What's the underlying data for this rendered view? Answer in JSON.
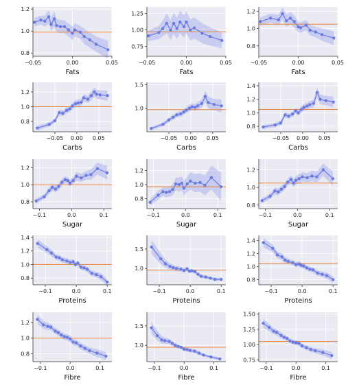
{
  "colors": {
    "background": "#eaeaf2",
    "line": "#6b7be0",
    "band": "#a9b2ee",
    "reference": "#e8823a",
    "grid": "#ffffff"
  },
  "chart_data": [
    {
      "type": "line",
      "row": 0,
      "col": 0,
      "xlabel": "Fats",
      "xlim": [
        -0.05,
        0.05
      ],
      "ylim": [
        0.77,
        1.22
      ],
      "xticks": [
        -0.05,
        0.0,
        0.05
      ],
      "xtick_labels": [
        "−0.05",
        "0.00",
        "0.05"
      ],
      "yticks": [
        0.8,
        1.0,
        1.2
      ],
      "ytick_labels": [
        "0.8",
        "1.0",
        "1.2"
      ],
      "reference": 0.99,
      "x": [
        -0.048,
        -0.04,
        -0.035,
        -0.03,
        -0.027,
        -0.023,
        -0.02,
        -0.015,
        -0.01,
        -0.005,
        0.0,
        0.003,
        0.01,
        0.015,
        0.022,
        0.03,
        0.045
      ],
      "y": [
        1.08,
        1.1,
        1.09,
        1.13,
        1.06,
        1.11,
        1.05,
        1.04,
        1.04,
        1.01,
        0.98,
        1.01,
        0.99,
        0.95,
        0.92,
        0.88,
        0.83
      ],
      "band": [
        0.04,
        0.04,
        0.05,
        0.06,
        0.06,
        0.07,
        0.06,
        0.06,
        0.06,
        0.06,
        0.06,
        0.06,
        0.06,
        0.07,
        0.07,
        0.07,
        0.08
      ]
    },
    {
      "type": "line",
      "row": 0,
      "col": 1,
      "xlabel": "Fats",
      "xlim": [
        -0.05,
        0.05
      ],
      "ylim": [
        0.6,
        1.35
      ],
      "xticks": [
        -0.05,
        0.0,
        0.05
      ],
      "xtick_labels": [
        "−0.05",
        "0.00",
        "0.05"
      ],
      "yticks": [
        0.75,
        1.0,
        1.25
      ],
      "ytick_labels": [
        "0.75",
        "1.00",
        "1.25"
      ],
      "reference": 0.97,
      "x": [
        -0.048,
        -0.035,
        -0.03,
        -0.025,
        -0.02,
        -0.016,
        -0.012,
        -0.008,
        -0.003,
        0.0,
        0.005,
        0.01,
        0.02,
        0.03,
        0.045
      ],
      "y": [
        0.91,
        0.96,
        1.02,
        1.1,
        1.0,
        1.1,
        1.02,
        1.12,
        1.05,
        1.12,
        1.0,
        1.03,
        0.95,
        0.9,
        0.84
      ],
      "band": [
        0.08,
        0.1,
        0.12,
        0.15,
        0.15,
        0.16,
        0.16,
        0.17,
        0.17,
        0.17,
        0.16,
        0.16,
        0.15,
        0.14,
        0.12
      ]
    },
    {
      "type": "line",
      "row": 0,
      "col": 2,
      "xlabel": "Fats",
      "xlim": [
        -0.05,
        0.05
      ],
      "ylim": [
        0.68,
        1.25
      ],
      "xticks": [
        -0.05,
        0.0,
        0.05
      ],
      "xtick_labels": [
        "−0.05",
        "0.00",
        "0.05"
      ],
      "yticks": [
        0.8,
        1.0,
        1.2
      ],
      "ytick_labels": [
        "0.8",
        "1.0",
        "1.2"
      ],
      "reference": 1.05,
      "x": [
        -0.048,
        -0.035,
        -0.025,
        -0.02,
        -0.015,
        -0.01,
        -0.005,
        0.0,
        0.003,
        0.01,
        0.015,
        0.022,
        0.03,
        0.045
      ],
      "y": [
        1.08,
        1.12,
        1.1,
        1.17,
        1.09,
        1.12,
        1.08,
        1.02,
        1.01,
        1.04,
        0.98,
        0.96,
        0.93,
        0.89
      ],
      "band": [
        0.05,
        0.05,
        0.06,
        0.07,
        0.07,
        0.07,
        0.07,
        0.06,
        0.06,
        0.06,
        0.06,
        0.06,
        0.07,
        0.08
      ]
    },
    {
      "type": "line",
      "row": 1,
      "col": 0,
      "xlabel": "Carbs",
      "xlim": [
        -0.1,
        0.08
      ],
      "ylim": [
        0.66,
        1.33
      ],
      "xticks": [
        -0.05,
        0.0,
        0.05
      ],
      "xtick_labels": [
        "−0.05",
        "0.00",
        "0.05"
      ],
      "yticks": [
        0.8,
        1.0,
        1.2
      ],
      "ytick_labels": [
        "0.8",
        "1.0",
        "1.2"
      ],
      "reference": 1.0,
      "x": [
        -0.09,
        -0.063,
        -0.05,
        -0.04,
        -0.032,
        -0.023,
        -0.016,
        -0.01,
        -0.003,
        0.003,
        0.01,
        0.016,
        0.025,
        0.033,
        0.04,
        0.045,
        0.053,
        0.07
      ],
      "y": [
        0.71,
        0.76,
        0.81,
        0.92,
        0.91,
        0.95,
        0.97,
        1.01,
        1.04,
        1.05,
        1.06,
        1.12,
        1.1,
        1.15,
        1.2,
        1.17,
        1.16,
        1.15
      ],
      "band": [
        0.03,
        0.03,
        0.03,
        0.04,
        0.04,
        0.04,
        0.04,
        0.04,
        0.05,
        0.05,
        0.05,
        0.05,
        0.05,
        0.06,
        0.06,
        0.06,
        0.06,
        0.07
      ]
    },
    {
      "type": "line",
      "row": 1,
      "col": 1,
      "xlabel": "Carbs",
      "xlim": [
        -0.1,
        0.08
      ],
      "ylim": [
        0.5,
        1.55
      ],
      "xticks": [
        -0.05,
        0.0,
        0.05
      ],
      "xtick_labels": [
        "−0.05",
        "0.00",
        "0.05"
      ],
      "yticks": [
        1.0,
        1.5
      ],
      "ytick_labels": [
        "1.0",
        "1.5"
      ],
      "reference": 0.97,
      "x": [
        -0.09,
        -0.063,
        -0.05,
        -0.04,
        -0.032,
        -0.023,
        -0.016,
        -0.01,
        -0.003,
        0.003,
        0.01,
        0.016,
        0.025,
        0.033,
        0.04,
        0.053,
        0.07
      ],
      "y": [
        0.57,
        0.66,
        0.75,
        0.81,
        0.86,
        0.88,
        0.92,
        0.96,
        1.0,
        1.03,
        1.02,
        1.05,
        1.1,
        1.25,
        1.12,
        1.08,
        1.05
      ],
      "band": [
        0.04,
        0.04,
        0.05,
        0.05,
        0.05,
        0.06,
        0.06,
        0.06,
        0.07,
        0.07,
        0.07,
        0.08,
        0.09,
        0.12,
        0.12,
        0.12,
        0.14
      ]
    },
    {
      "type": "line",
      "row": 1,
      "col": 2,
      "xlabel": "Carbs",
      "xlim": [
        -0.1,
        0.08
      ],
      "ylim": [
        0.72,
        1.45
      ],
      "xticks": [
        -0.05,
        0.0,
        0.05
      ],
      "xtick_labels": [
        "−0.05",
        "0.00",
        "0.05"
      ],
      "yticks": [
        0.8,
        1.0,
        1.2,
        1.4
      ],
      "ytick_labels": [
        "0.8",
        "1.0",
        "1.2",
        "1.4"
      ],
      "reference": 1.05,
      "x": [
        -0.09,
        -0.063,
        -0.05,
        -0.04,
        -0.032,
        -0.023,
        -0.016,
        -0.01,
        -0.003,
        0.003,
        0.01,
        0.016,
        0.025,
        0.033,
        0.04,
        0.053,
        0.07
      ],
      "y": [
        0.79,
        0.82,
        0.85,
        0.97,
        0.95,
        0.98,
        1.03,
        1.0,
        1.05,
        1.08,
        1.1,
        1.12,
        1.14,
        1.3,
        1.2,
        1.18,
        1.16
      ],
      "band": [
        0.03,
        0.03,
        0.04,
        0.04,
        0.04,
        0.04,
        0.04,
        0.04,
        0.05,
        0.05,
        0.05,
        0.05,
        0.06,
        0.07,
        0.07,
        0.07,
        0.08
      ]
    },
    {
      "type": "line",
      "row": 2,
      "col": 0,
      "xlabel": "Sugar",
      "xlim": [
        -0.12,
        0.125
      ],
      "ylim": [
        0.72,
        1.3
      ],
      "xticks": [
        -0.1,
        0.0,
        0.1
      ],
      "xtick_labels": [
        "−0.1",
        "0.0",
        "0.1"
      ],
      "yticks": [
        0.8,
        1.0,
        1.2
      ],
      "ytick_labels": [
        "0.8",
        "1.0",
        "1.2"
      ],
      "reference": 1.0,
      "x": [
        -0.11,
        -0.085,
        -0.07,
        -0.06,
        -0.05,
        -0.04,
        -0.03,
        -0.02,
        -0.012,
        -0.005,
        0.005,
        0.015,
        0.03,
        0.045,
        0.06,
        0.08,
        0.11
      ],
      "y": [
        0.81,
        0.86,
        0.93,
        0.97,
        0.95,
        0.98,
        1.03,
        1.06,
        1.05,
        1.02,
        1.05,
        1.1,
        1.08,
        1.11,
        1.12,
        1.19,
        1.14
      ],
      "band": [
        0.03,
        0.03,
        0.04,
        0.04,
        0.04,
        0.04,
        0.04,
        0.04,
        0.04,
        0.04,
        0.04,
        0.05,
        0.05,
        0.05,
        0.06,
        0.07,
        0.08
      ]
    },
    {
      "type": "line",
      "row": 2,
      "col": 1,
      "xlabel": "Sugar",
      "xlim": [
        -0.12,
        0.125
      ],
      "ylim": [
        0.66,
        1.36
      ],
      "xticks": [
        -0.1,
        0.0,
        0.1
      ],
      "xtick_labels": [
        "−0.1",
        "0.0",
        "0.1"
      ],
      "yticks": [
        0.8,
        1.0,
        1.2
      ],
      "ytick_labels": [
        "0.8",
        "1.0",
        "1.2"
      ],
      "reference": 0.97,
      "x": [
        -0.11,
        -0.085,
        -0.07,
        -0.06,
        -0.05,
        -0.04,
        -0.03,
        -0.02,
        -0.012,
        -0.005,
        0.005,
        0.015,
        0.03,
        0.045,
        0.06,
        0.08,
        0.11
      ],
      "y": [
        0.75,
        0.85,
        0.9,
        0.89,
        0.9,
        0.93,
        1.01,
        1.0,
        1.02,
        0.95,
        1.01,
        1.05,
        1.02,
        1.03,
        0.99,
        1.1,
        0.97
      ],
      "band": [
        0.05,
        0.06,
        0.06,
        0.07,
        0.07,
        0.08,
        0.09,
        0.1,
        0.1,
        0.1,
        0.11,
        0.12,
        0.13,
        0.13,
        0.14,
        0.17,
        0.2
      ]
    },
    {
      "type": "line",
      "row": 2,
      "col": 2,
      "xlabel": "Sugar",
      "xlim": [
        -0.12,
        0.125
      ],
      "ylim": [
        0.76,
        1.32
      ],
      "xticks": [
        -0.1,
        0.0,
        0.1
      ],
      "xtick_labels": [
        "−0.1",
        "0.0",
        "0.1"
      ],
      "yticks": [
        0.8,
        1.0,
        1.2
      ],
      "ytick_labels": [
        "0.8",
        "1.0",
        "1.2"
      ],
      "reference": 1.05,
      "x": [
        -0.11,
        -0.085,
        -0.07,
        -0.06,
        -0.05,
        -0.04,
        -0.03,
        -0.02,
        -0.012,
        -0.005,
        0.005,
        0.015,
        0.03,
        0.045,
        0.06,
        0.08,
        0.11
      ],
      "y": [
        0.85,
        0.9,
        0.96,
        0.95,
        0.98,
        1.01,
        1.06,
        1.09,
        1.05,
        1.08,
        1.1,
        1.12,
        1.11,
        1.13,
        1.12,
        1.2,
        1.1
      ],
      "band": [
        0.03,
        0.03,
        0.04,
        0.04,
        0.04,
        0.04,
        0.04,
        0.05,
        0.05,
        0.05,
        0.05,
        0.05,
        0.05,
        0.06,
        0.06,
        0.07,
        0.08
      ]
    },
    {
      "type": "line",
      "row": 3,
      "col": 0,
      "xlabel": "Proteins",
      "xlim": [
        -0.14,
        0.115
      ],
      "ylim": [
        0.7,
        1.43
      ],
      "xticks": [
        -0.1,
        0.0,
        0.1
      ],
      "xtick_labels": [
        "−0.1",
        "0.0",
        "0.1"
      ],
      "yticks": [
        0.8,
        1.0,
        1.2,
        1.4
      ],
      "ytick_labels": [
        "0.8",
        "1.0",
        "1.2",
        "1.4"
      ],
      "reference": 1.0,
      "x": [
        -0.125,
        -0.095,
        -0.08,
        -0.065,
        -0.055,
        -0.045,
        -0.03,
        -0.02,
        -0.01,
        -0.003,
        0.005,
        0.015,
        0.025,
        0.035,
        0.05,
        0.065,
        0.08,
        0.1
      ],
      "y": [
        1.31,
        1.22,
        1.17,
        1.11,
        1.1,
        1.07,
        1.05,
        1.03,
        1.04,
        1.0,
        1.02,
        0.96,
        0.95,
        0.93,
        0.87,
        0.85,
        0.82,
        0.74
      ],
      "band": [
        0.06,
        0.05,
        0.05,
        0.04,
        0.04,
        0.04,
        0.04,
        0.04,
        0.04,
        0.04,
        0.04,
        0.04,
        0.04,
        0.04,
        0.04,
        0.04,
        0.05,
        0.05
      ]
    },
    {
      "type": "line",
      "row": 3,
      "col": 1,
      "xlabel": "Proteins",
      "xlim": [
        -0.14,
        0.115
      ],
      "ylim": [
        0.58,
        1.85
      ],
      "xticks": [
        -0.1,
        0.0,
        0.1
      ],
      "xtick_labels": [
        "−0.1",
        "0.0",
        "0.1"
      ],
      "yticks": [
        1.0,
        1.5
      ],
      "ytick_labels": [
        "1.0",
        "1.5"
      ],
      "reference": 0.96,
      "x": [
        -0.125,
        -0.095,
        -0.08,
        -0.065,
        -0.055,
        -0.045,
        -0.03,
        -0.02,
        -0.01,
        -0.003,
        0.005,
        0.015,
        0.025,
        0.035,
        0.05,
        0.065,
        0.08,
        0.1
      ],
      "y": [
        1.55,
        1.25,
        1.12,
        1.05,
        1.02,
        1.0,
        0.98,
        0.95,
        0.99,
        0.93,
        0.94,
        0.92,
        0.85,
        0.8,
        0.78,
        0.75,
        0.72,
        0.72
      ],
      "band": [
        0.18,
        0.14,
        0.1,
        0.08,
        0.07,
        0.07,
        0.06,
        0.06,
        0.06,
        0.05,
        0.05,
        0.05,
        0.05,
        0.05,
        0.04,
        0.04,
        0.04,
        0.04
      ]
    },
    {
      "type": "line",
      "row": 3,
      "col": 2,
      "xlabel": "Proteins",
      "xlim": [
        -0.14,
        0.115
      ],
      "ylim": [
        0.72,
        1.48
      ],
      "xticks": [
        -0.1,
        0.0,
        0.1
      ],
      "xtick_labels": [
        "−0.1",
        "0.0",
        "0.1"
      ],
      "yticks": [
        0.8,
        1.0,
        1.2,
        1.4
      ],
      "ytick_labels": [
        "0.8",
        "1.0",
        "1.2",
        "1.4"
      ],
      "reference": 1.05,
      "x": [
        -0.125,
        -0.095,
        -0.08,
        -0.065,
        -0.055,
        -0.045,
        -0.03,
        -0.02,
        -0.01,
        -0.003,
        0.005,
        0.015,
        0.025,
        0.035,
        0.05,
        0.065,
        0.08,
        0.1
      ],
      "y": [
        1.37,
        1.28,
        1.18,
        1.15,
        1.1,
        1.08,
        1.06,
        1.03,
        1.04,
        1.02,
        1.01,
        0.98,
        0.96,
        0.95,
        0.9,
        0.88,
        0.86,
        0.8
      ],
      "band": [
        0.07,
        0.06,
        0.05,
        0.05,
        0.05,
        0.04,
        0.04,
        0.04,
        0.04,
        0.04,
        0.04,
        0.04,
        0.04,
        0.04,
        0.04,
        0.04,
        0.05,
        0.05
      ]
    },
    {
      "type": "line",
      "row": 4,
      "col": 0,
      "xlabel": "Fibre",
      "xlim": [
        -0.125,
        0.14
      ],
      "ylim": [
        0.7,
        1.33
      ],
      "xticks": [
        -0.1,
        0.0,
        0.1
      ],
      "xtick_labels": [
        "−0.1",
        "0.0",
        "0.1"
      ],
      "yticks": [
        0.8,
        1.0,
        1.2
      ],
      "ytick_labels": [
        "0.8",
        "1.0",
        "1.2"
      ],
      "reference": 1.0,
      "x": [
        -0.11,
        -0.09,
        -0.075,
        -0.065,
        -0.05,
        -0.04,
        -0.03,
        -0.02,
        -0.01,
        0.0,
        0.01,
        0.02,
        0.035,
        0.05,
        0.065,
        0.09,
        0.12
      ],
      "y": [
        1.24,
        1.17,
        1.15,
        1.14,
        1.09,
        1.07,
        1.04,
        1.02,
        1.01,
        0.99,
        0.95,
        0.94,
        0.9,
        0.87,
        0.84,
        0.81,
        0.77
      ],
      "band": [
        0.06,
        0.05,
        0.05,
        0.04,
        0.04,
        0.04,
        0.04,
        0.04,
        0.04,
        0.04,
        0.04,
        0.04,
        0.04,
        0.04,
        0.04,
        0.05,
        0.05
      ]
    },
    {
      "type": "line",
      "row": 4,
      "col": 1,
      "xlabel": "Fibre",
      "xlim": [
        -0.125,
        0.14
      ],
      "ylim": [
        0.58,
        1.85
      ],
      "xticks": [
        -0.1,
        0.0,
        0.1
      ],
      "xtick_labels": [
        "−0.1",
        "0.0",
        "0.1"
      ],
      "yticks": [
        1.0,
        1.5
      ],
      "ytick_labels": [
        "1.0",
        "1.5"
      ],
      "reference": 0.95,
      "x": [
        -0.11,
        -0.09,
        -0.075,
        -0.065,
        -0.05,
        -0.04,
        -0.03,
        -0.02,
        -0.01,
        0.0,
        0.01,
        0.02,
        0.035,
        0.05,
        0.065,
        0.09,
        0.12
      ],
      "y": [
        1.45,
        1.25,
        1.14,
        1.12,
        1.1,
        1.05,
        1.0,
        0.97,
        0.95,
        0.9,
        0.89,
        0.87,
        0.85,
        0.8,
        0.75,
        0.7,
        0.65
      ],
      "band": [
        0.15,
        0.12,
        0.1,
        0.08,
        0.07,
        0.06,
        0.06,
        0.05,
        0.05,
        0.05,
        0.05,
        0.05,
        0.05,
        0.05,
        0.04,
        0.04,
        0.04
      ]
    },
    {
      "type": "line",
      "row": 4,
      "col": 2,
      "xlabel": "Fibre",
      "xlim": [
        -0.125,
        0.14
      ],
      "ylim": [
        0.72,
        1.53
      ],
      "xticks": [
        -0.1,
        0.0,
        0.1
      ],
      "xtick_labels": [
        "−0.1",
        "0.0",
        "0.1"
      ],
      "yticks": [
        0.75,
        1.0,
        1.25,
        1.5
      ],
      "ytick_labels": [
        "0.75",
        "1.00",
        "1.25",
        "1.50"
      ],
      "reference": 1.05,
      "x": [
        -0.11,
        -0.09,
        -0.075,
        -0.065,
        -0.05,
        -0.04,
        -0.03,
        -0.02,
        -0.01,
        0.0,
        0.01,
        0.02,
        0.035,
        0.05,
        0.065,
        0.09,
        0.12
      ],
      "y": [
        1.35,
        1.28,
        1.22,
        1.2,
        1.15,
        1.12,
        1.1,
        1.06,
        1.04,
        1.03,
        1.02,
        0.98,
        0.95,
        0.92,
        0.9,
        0.87,
        0.82
      ],
      "band": [
        0.07,
        0.06,
        0.05,
        0.05,
        0.05,
        0.04,
        0.04,
        0.04,
        0.04,
        0.04,
        0.04,
        0.04,
        0.04,
        0.04,
        0.04,
        0.05,
        0.06
      ]
    }
  ]
}
